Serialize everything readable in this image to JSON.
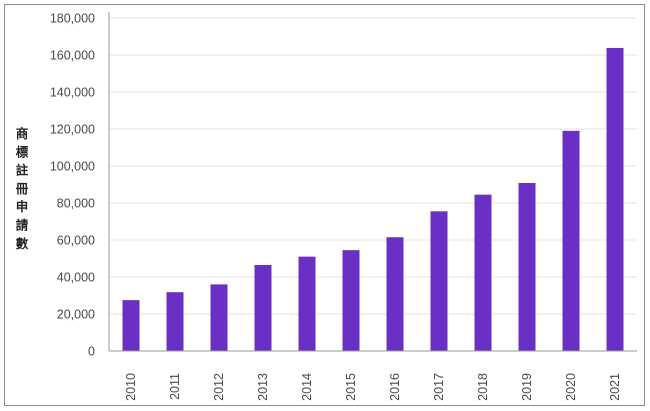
{
  "chart_data": {
    "type": "bar",
    "title": "",
    "xlabel": "",
    "ylabel": "商標註冊申請數",
    "categories": [
      "2010",
      "2011",
      "2012",
      "2013",
      "2014",
      "2015",
      "2016",
      "2017",
      "2018",
      "2019",
      "2020",
      "2021"
    ],
    "values": [
      27500,
      31800,
      36000,
      46500,
      51000,
      54500,
      61500,
      75500,
      84500,
      90800,
      119000,
      163800
    ],
    "ylim": [
      0,
      180000
    ],
    "yticks": [
      0,
      20000,
      40000,
      60000,
      80000,
      100000,
      120000,
      140000,
      160000,
      180000
    ],
    "ytick_labels": [
      "0",
      "20,000",
      "40,000",
      "60,000",
      "80,000",
      "100,000",
      "120,000",
      "140,000",
      "160,000",
      "180,000"
    ],
    "grid": true,
    "legend": "none",
    "bar_color": "#6a2fc4",
    "grid_color": "#e3e3e3",
    "axis_color": "#9a9a9a"
  }
}
